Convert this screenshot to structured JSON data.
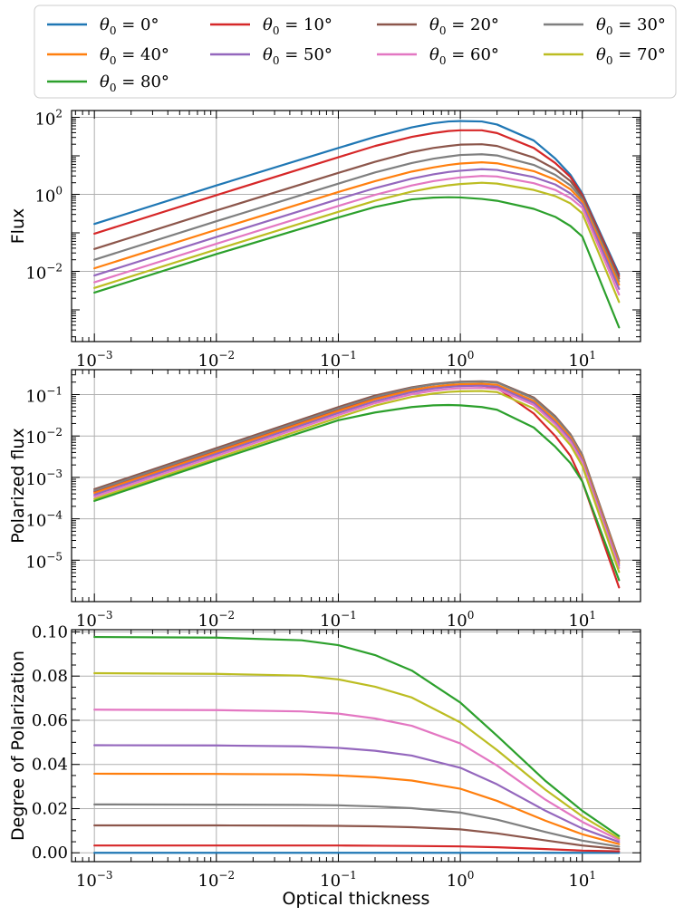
{
  "colors": {
    "c0": "#1f77b4",
    "c10": "#d62728",
    "c20": "#8c564b",
    "c30": "#7f7f7f",
    "c40": "#ff7f0e",
    "c50": "#9467bd",
    "c60": "#e377c2",
    "c70": "#bcbd22",
    "c80": "#2ca02c"
  },
  "chart_data": [
    {
      "type": "line",
      "panel": "top",
      "title": "",
      "xlabel": "",
      "ylabel": "Flux",
      "xscale": "log",
      "yscale": "log",
      "xlim": [
        0.00065,
        30
      ],
      "ylim": [
        0.00015,
        150
      ],
      "x_ticks": [
        {
          "base": "10",
          "exp": "−3",
          "value": 0.001
        },
        {
          "base": "10",
          "exp": "−2",
          "value": 0.01
        },
        {
          "base": "10",
          "exp": "−1",
          "value": 0.1
        },
        {
          "base": "10",
          "exp": "0",
          "value": 1
        },
        {
          "base": "10",
          "exp": "1",
          "value": 10
        }
      ],
      "y_ticks": [
        {
          "base": "10",
          "exp": "−2",
          "value": 0.01
        },
        {
          "base": "10",
          "exp": "0",
          "value": 1
        },
        {
          "base": "10",
          "exp": "2",
          "value": 100
        }
      ],
      "x": [
        0.001,
        0.01,
        0.1,
        0.2,
        0.4,
        0.6,
        0.8,
        1,
        1.5,
        2,
        4,
        6,
        8,
        10,
        20
      ],
      "series": [
        {
          "name": "θ0 = 0°",
          "color_key": "c0",
          "values": [
            0.17,
            1.7,
            16,
            31,
            55,
            70,
            78,
            80,
            78,
            65,
            25,
            8.5,
            3.2,
            1.05,
            0.0085
          ]
        },
        {
          "name": "θ0 = 10°",
          "color_key": "c10",
          "values": [
            0.095,
            0.95,
            9.2,
            18,
            31,
            39,
            44,
            46,
            46,
            39,
            16,
            6.5,
            2.8,
            0.95,
            0.0075
          ]
        },
        {
          "name": "θ0 = 20°",
          "color_key": "c20",
          "values": [
            0.038,
            0.38,
            3.6,
            7,
            12.5,
            16,
            18,
            19.5,
            20,
            18,
            9,
            4.5,
            2.2,
            0.85,
            0.0065
          ]
        },
        {
          "name": "θ0 = 30°",
          "color_key": "c30",
          "values": [
            0.02,
            0.2,
            1.9,
            3.7,
            6.5,
            8.4,
            9.6,
            10.5,
            11,
            10.2,
            5.8,
            3.2,
            1.7,
            0.75,
            0.0055
          ]
        },
        {
          "name": "θ0 = 40°",
          "color_key": "c40",
          "values": [
            0.012,
            0.12,
            1.15,
            2.2,
            3.9,
            5,
            5.8,
            6.3,
            6.8,
            6.4,
            4,
            2.4,
            1.35,
            0.65,
            0.0045
          ]
        },
        {
          "name": "θ0 = 50°",
          "color_key": "c50",
          "values": [
            0.0078,
            0.078,
            0.75,
            1.45,
            2.55,
            3.3,
            3.8,
            4.1,
            4.5,
            4.3,
            2.8,
            1.8,
            1.05,
            0.55,
            0.0035
          ]
        },
        {
          "name": "θ0 = 60°",
          "color_key": "c60",
          "values": [
            0.0052,
            0.052,
            0.5,
            0.97,
            1.7,
            2.2,
            2.5,
            2.75,
            3,
            2.9,
            1.95,
            1.3,
            0.8,
            0.45,
            0.0025
          ]
        },
        {
          "name": "θ0 = 70°",
          "color_key": "c70",
          "values": [
            0.0037,
            0.037,
            0.35,
            0.68,
            1.18,
            1.5,
            1.72,
            1.85,
            2,
            1.9,
            1.3,
            0.9,
            0.58,
            0.32,
            0.0016
          ]
        },
        {
          "name": "θ0 = 80°",
          "color_key": "c80",
          "values": [
            0.0028,
            0.028,
            0.25,
            0.47,
            0.74,
            0.82,
            0.84,
            0.83,
            0.76,
            0.68,
            0.42,
            0.26,
            0.15,
            0.08,
            0.00035
          ]
        }
      ]
    },
    {
      "type": "line",
      "panel": "middle",
      "title": "",
      "xlabel": "",
      "ylabel": "Polarized flux",
      "xscale": "log",
      "yscale": "log",
      "xlim": [
        0.00065,
        30
      ],
      "ylim": [
        1e-06,
        0.4
      ],
      "x_ticks": [
        {
          "base": "10",
          "exp": "−3",
          "value": 0.001
        },
        {
          "base": "10",
          "exp": "−2",
          "value": 0.01
        },
        {
          "base": "10",
          "exp": "−1",
          "value": 0.1
        },
        {
          "base": "10",
          "exp": "0",
          "value": 1
        },
        {
          "base": "10",
          "exp": "1",
          "value": 10
        }
      ],
      "y_ticks": [
        {
          "base": "10",
          "exp": "−1",
          "value": 0.1
        },
        {
          "base": "10",
          "exp": "−2",
          "value": 0.01
        },
        {
          "base": "10",
          "exp": "−3",
          "value": 0.001
        },
        {
          "base": "10",
          "exp": "−4",
          "value": 0.0001
        },
        {
          "base": "10",
          "exp": "−5",
          "value": 1e-05
        }
      ],
      "x": [
        0.001,
        0.01,
        0.1,
        0.2,
        0.4,
        0.6,
        0.8,
        1,
        1.5,
        2,
        4,
        6,
        8,
        10,
        20
      ],
      "series": [
        {
          "name": "θ0 = 10°",
          "color_key": "c10",
          "values": [
            0.00045,
            0.0044,
            0.043,
            0.082,
            0.13,
            0.155,
            0.165,
            0.17,
            0.165,
            0.145,
            0.035,
            0.01,
            0.0033,
            0.0008,
            2.2e-06
          ]
        },
        {
          "name": "θ0 = 20°",
          "color_key": "c20",
          "values": [
            0.00052,
            0.0051,
            0.05,
            0.095,
            0.15,
            0.18,
            0.195,
            0.205,
            0.21,
            0.2,
            0.085,
            0.03,
            0.011,
            0.0035,
            1e-05
          ]
        },
        {
          "name": "θ0 = 30°",
          "color_key": "c30",
          "values": [
            0.00048,
            0.0047,
            0.046,
            0.088,
            0.145,
            0.175,
            0.19,
            0.2,
            0.205,
            0.195,
            0.08,
            0.028,
            0.0105,
            0.0033,
            9.5e-06
          ]
        },
        {
          "name": "θ0 = 40°",
          "color_key": "c40",
          "values": [
            0.00042,
            0.0041,
            0.04,
            0.077,
            0.128,
            0.155,
            0.17,
            0.178,
            0.182,
            0.172,
            0.07,
            0.024,
            0.0092,
            0.0029,
            8.5e-06
          ]
        },
        {
          "name": "θ0 = 50°",
          "color_key": "c50",
          "values": [
            0.00038,
            0.0037,
            0.036,
            0.069,
            0.115,
            0.14,
            0.153,
            0.16,
            0.164,
            0.155,
            0.063,
            0.021,
            0.0082,
            0.0026,
            7.5e-06
          ]
        },
        {
          "name": "θ0 = 60°",
          "color_key": "c60",
          "values": [
            0.00034,
            0.0033,
            0.032,
            0.062,
            0.102,
            0.124,
            0.136,
            0.142,
            0.145,
            0.137,
            0.056,
            0.019,
            0.0072,
            0.0023,
            6.5e-06
          ]
        },
        {
          "name": "θ0 = 70°",
          "color_key": "c70",
          "values": [
            0.0003,
            0.0029,
            0.028,
            0.054,
            0.088,
            0.106,
            0.116,
            0.12,
            0.122,
            0.115,
            0.046,
            0.016,
            0.006,
            0.0019,
            5.2e-06
          ]
        },
        {
          "name": "θ0 = 80°",
          "color_key": "c80",
          "values": [
            0.00027,
            0.0026,
            0.024,
            0.037,
            0.05,
            0.055,
            0.056,
            0.055,
            0.05,
            0.043,
            0.016,
            0.0055,
            0.0022,
            0.0008,
            3.3e-06
          ]
        }
      ]
    },
    {
      "type": "line",
      "panel": "bottom",
      "title": "",
      "xlabel": "Optical thickness",
      "ylabel": "Degree of Polarization",
      "xscale": "log",
      "yscale": "linear",
      "xlim": [
        0.00065,
        30
      ],
      "ylim": [
        -0.004,
        0.101
      ],
      "x_ticks": [
        {
          "base": "10",
          "exp": "−3",
          "value": 0.001
        },
        {
          "base": "10",
          "exp": "−2",
          "value": 0.01
        },
        {
          "base": "10",
          "exp": "−1",
          "value": 0.1
        },
        {
          "base": "10",
          "exp": "0",
          "value": 1
        },
        {
          "base": "10",
          "exp": "1",
          "value": 10
        }
      ],
      "y_ticks": [
        {
          "label": "0.00",
          "value": 0
        },
        {
          "label": "0.02",
          "value": 0.02
        },
        {
          "label": "0.04",
          "value": 0.04
        },
        {
          "label": "0.06",
          "value": 0.06
        },
        {
          "label": "0.08",
          "value": 0.08
        },
        {
          "label": "0.10",
          "value": 0.1
        }
      ],
      "x": [
        0.001,
        0.01,
        0.05,
        0.1,
        0.2,
        0.4,
        1,
        2,
        5,
        10,
        20
      ],
      "series": [
        {
          "name": "θ0 = 0°",
          "color_key": "c0",
          "values": [
            0,
            0,
            0,
            0,
            0,
            0,
            0,
            0,
            0,
            0,
            0
          ]
        },
        {
          "name": "θ0 = 10°",
          "color_key": "c10",
          "values": [
            0.0033,
            0.0033,
            0.0033,
            0.0033,
            0.0032,
            0.0031,
            0.0029,
            0.0025,
            0.0017,
            0.001,
            0.0007
          ]
        },
        {
          "name": "θ0 = 20°",
          "color_key": "c20",
          "values": [
            0.0124,
            0.0124,
            0.0123,
            0.0122,
            0.012,
            0.0116,
            0.0106,
            0.0088,
            0.0056,
            0.0033,
            0.0017
          ]
        },
        {
          "name": "θ0 = 30°",
          "color_key": "c30",
          "values": [
            0.0219,
            0.0218,
            0.0217,
            0.0215,
            0.021,
            0.0202,
            0.0182,
            0.015,
            0.0094,
            0.0055,
            0.0028
          ]
        },
        {
          "name": "θ0 = 40°",
          "color_key": "c40",
          "values": [
            0.0358,
            0.0357,
            0.0355,
            0.035,
            0.0342,
            0.0327,
            0.029,
            0.0235,
            0.0145,
            0.0084,
            0.0039
          ]
        },
        {
          "name": "θ0 = 50°",
          "color_key": "c50",
          "values": [
            0.0487,
            0.0486,
            0.0482,
            0.0475,
            0.0462,
            0.044,
            0.0385,
            0.031,
            0.019,
            0.011,
            0.0049
          ]
        },
        {
          "name": "θ0 = 60°",
          "color_key": "c60",
          "values": [
            0.0648,
            0.0646,
            0.064,
            0.063,
            0.0608,
            0.0575,
            0.0495,
            0.0395,
            0.024,
            0.014,
            0.0058
          ]
        },
        {
          "name": "θ0 = 70°",
          "color_key": "c70",
          "values": [
            0.0813,
            0.081,
            0.0802,
            0.0785,
            0.0752,
            0.0703,
            0.059,
            0.0465,
            0.0285,
            0.0165,
            0.0066
          ]
        },
        {
          "name": "θ0 = 80°",
          "color_key": "c80",
          "values": [
            0.0977,
            0.0974,
            0.0962,
            0.094,
            0.0895,
            0.0825,
            0.068,
            0.053,
            0.0325,
            0.019,
            0.0076
          ]
        }
      ]
    }
  ],
  "legend": [
    {
      "prefix": "θ",
      "sub": "0",
      "suffix": " = 0°",
      "color_key": "c0"
    },
    {
      "prefix": "θ",
      "sub": "0",
      "suffix": " = 10°",
      "color_key": "c10"
    },
    {
      "prefix": "θ",
      "sub": "0",
      "suffix": " = 20°",
      "color_key": "c20"
    },
    {
      "prefix": "θ",
      "sub": "0",
      "suffix": " = 30°",
      "color_key": "c30"
    },
    {
      "prefix": "θ",
      "sub": "0",
      "suffix": " = 40°",
      "color_key": "c40"
    },
    {
      "prefix": "θ",
      "sub": "0",
      "suffix": " = 50°",
      "color_key": "c50"
    },
    {
      "prefix": "θ",
      "sub": "0",
      "suffix": " = 60°",
      "color_key": "c60"
    },
    {
      "prefix": "θ",
      "sub": "0",
      "suffix": " = 70°",
      "color_key": "c70"
    },
    {
      "prefix": "θ",
      "sub": "0",
      "suffix": " = 80°",
      "color_key": "c80"
    }
  ]
}
